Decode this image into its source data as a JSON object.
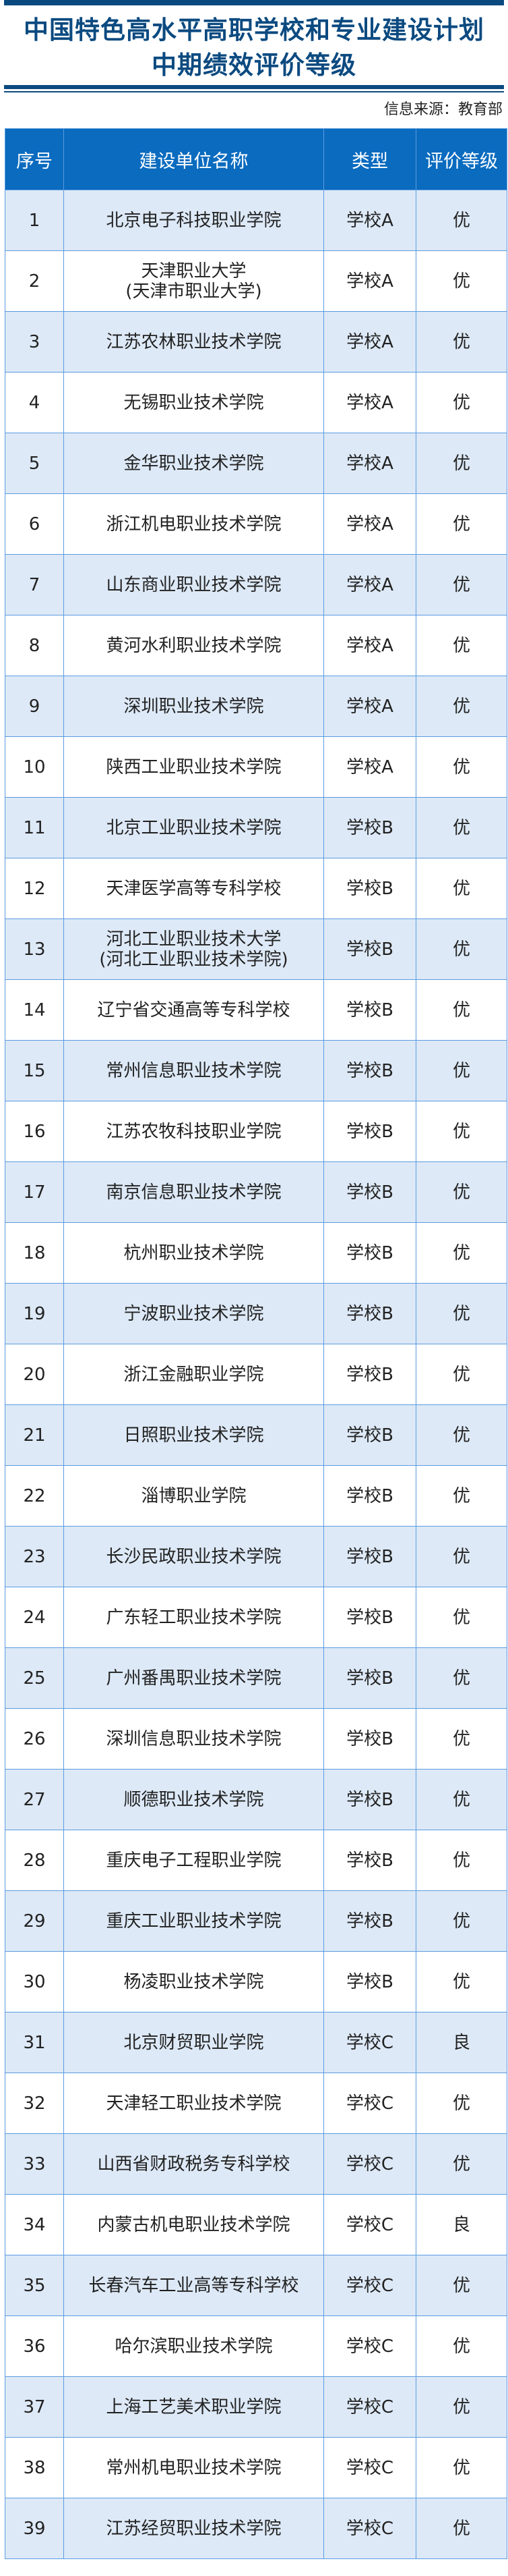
{
  "title_line1": "中国特色高水平高职学校和专业建设计划",
  "title_line2": "中期绩效评价等级",
  "source": "信息来源：教育部",
  "colors": {
    "title": "#0b4a80",
    "header_bg": "#0a6bbf",
    "alt_row_bg": "#dde9f7",
    "border": "#5b9be0"
  },
  "columns": [
    "序号",
    "建设单位名称",
    "类型",
    "评价等级"
  ],
  "rows": [
    {
      "no": "1",
      "name": "北京电子科技职业学院",
      "type": "学校A",
      "grade": "优"
    },
    {
      "no": "2",
      "name": "天津职业大学\n(天津市职业大学)",
      "type": "学校A",
      "grade": "优"
    },
    {
      "no": "3",
      "name": "江苏农林职业技术学院",
      "type": "学校A",
      "grade": "优"
    },
    {
      "no": "4",
      "name": "无锡职业技术学院",
      "type": "学校A",
      "grade": "优"
    },
    {
      "no": "5",
      "name": "金华职业技术学院",
      "type": "学校A",
      "grade": "优"
    },
    {
      "no": "6",
      "name": "浙江机电职业技术学院",
      "type": "学校A",
      "grade": "优"
    },
    {
      "no": "7",
      "name": "山东商业职业技术学院",
      "type": "学校A",
      "grade": "优"
    },
    {
      "no": "8",
      "name": "黄河水利职业技术学院",
      "type": "学校A",
      "grade": "优"
    },
    {
      "no": "9",
      "name": "深圳职业技术学院",
      "type": "学校A",
      "grade": "优"
    },
    {
      "no": "10",
      "name": "陕西工业职业技术学院",
      "type": "学校A",
      "grade": "优"
    },
    {
      "no": "11",
      "name": "北京工业职业技术学院",
      "type": "学校B",
      "grade": "优"
    },
    {
      "no": "12",
      "name": "天津医学高等专科学校",
      "type": "学校B",
      "grade": "优"
    },
    {
      "no": "13",
      "name": "河北工业职业技术大学\n(河北工业职业技术学院)",
      "type": "学校B",
      "grade": "优"
    },
    {
      "no": "14",
      "name": "辽宁省交通高等专科学校",
      "type": "学校B",
      "grade": "优"
    },
    {
      "no": "15",
      "name": "常州信息职业技术学院",
      "type": "学校B",
      "grade": "优"
    },
    {
      "no": "16",
      "name": "江苏农牧科技职业学院",
      "type": "学校B",
      "grade": "优"
    },
    {
      "no": "17",
      "name": "南京信息职业技术学院",
      "type": "学校B",
      "grade": "优"
    },
    {
      "no": "18",
      "name": "杭州职业技术学院",
      "type": "学校B",
      "grade": "优"
    },
    {
      "no": "19",
      "name": "宁波职业技术学院",
      "type": "学校B",
      "grade": "优"
    },
    {
      "no": "20",
      "name": "浙江金融职业学院",
      "type": "学校B",
      "grade": "优"
    },
    {
      "no": "21",
      "name": "日照职业技术学院",
      "type": "学校B",
      "grade": "优"
    },
    {
      "no": "22",
      "name": "淄博职业学院",
      "type": "学校B",
      "grade": "优"
    },
    {
      "no": "23",
      "name": "长沙民政职业技术学院",
      "type": "学校B",
      "grade": "优"
    },
    {
      "no": "24",
      "name": "广东轻工职业技术学院",
      "type": "学校B",
      "grade": "优"
    },
    {
      "no": "25",
      "name": "广州番禺职业技术学院",
      "type": "学校B",
      "grade": "优"
    },
    {
      "no": "26",
      "name": "深圳信息职业技术学院",
      "type": "学校B",
      "grade": "优"
    },
    {
      "no": "27",
      "name": "顺德职业技术学院",
      "type": "学校B",
      "grade": "优"
    },
    {
      "no": "28",
      "name": "重庆电子工程职业学院",
      "type": "学校B",
      "grade": "优"
    },
    {
      "no": "29",
      "name": "重庆工业职业技术学院",
      "type": "学校B",
      "grade": "优"
    },
    {
      "no": "30",
      "name": "杨凌职业技术学院",
      "type": "学校B",
      "grade": "优"
    },
    {
      "no": "31",
      "name": "北京财贸职业学院",
      "type": "学校C",
      "grade": "良"
    },
    {
      "no": "32",
      "name": "天津轻工职业技术学院",
      "type": "学校C",
      "grade": "优"
    },
    {
      "no": "33",
      "name": "山西省财政税务专科学校",
      "type": "学校C",
      "grade": "优"
    },
    {
      "no": "34",
      "name": "内蒙古机电职业技术学院",
      "type": "学校C",
      "grade": "良"
    },
    {
      "no": "35",
      "name": "长春汽车工业高等专科学校",
      "type": "学校C",
      "grade": "优"
    },
    {
      "no": "36",
      "name": "哈尔滨职业技术学院",
      "type": "学校C",
      "grade": "优"
    },
    {
      "no": "37",
      "name": "上海工艺美术职业学院",
      "type": "学校C",
      "grade": "优"
    },
    {
      "no": "38",
      "name": "常州机电职业技术学院",
      "type": "学校C",
      "grade": "优"
    },
    {
      "no": "39",
      "name": "江苏经贸职业技术学院",
      "type": "学校C",
      "grade": "优"
    }
  ]
}
